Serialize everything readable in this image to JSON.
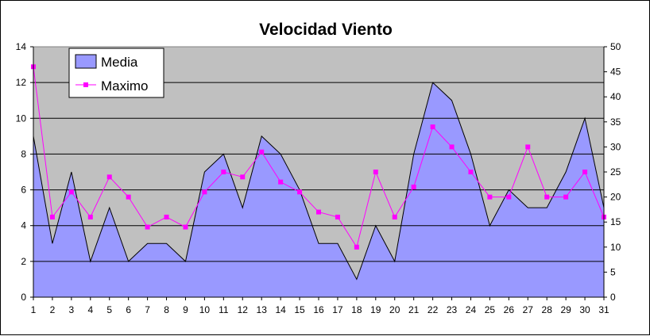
{
  "chart_data": {
    "type": "area+line",
    "title": "Velocidad Viento",
    "xlabel": "",
    "ylabel": "",
    "x": [
      1,
      2,
      3,
      4,
      5,
      6,
      7,
      8,
      9,
      10,
      11,
      12,
      13,
      14,
      15,
      16,
      17,
      18,
      19,
      20,
      21,
      22,
      23,
      24,
      25,
      26,
      27,
      28,
      29,
      30,
      31
    ],
    "y_left_lim": [
      0,
      14
    ],
    "y_left_ticks": [
      0,
      2,
      4,
      6,
      8,
      10,
      12,
      14
    ],
    "y_right_lim": [
      0,
      50
    ],
    "y_right_ticks": [
      0,
      5,
      10,
      15,
      20,
      25,
      30,
      35,
      40,
      45,
      50
    ],
    "grid": true,
    "legend_position": "top-left",
    "series": [
      {
        "name": "Media",
        "kind": "area",
        "axis": "left",
        "color": "#9999ff",
        "values": [
          9,
          3,
          7,
          2,
          5,
          2,
          3,
          3,
          2,
          7,
          8,
          5,
          9,
          8,
          6,
          3,
          3,
          1,
          4,
          2,
          8,
          12,
          11,
          8,
          4,
          6,
          5,
          5,
          7,
          10,
          5
        ]
      },
      {
        "name": "Maximo",
        "kind": "line",
        "axis": "right",
        "color": "#ff00ff",
        "values": [
          46,
          16,
          21,
          16,
          24,
          20,
          14,
          16,
          14,
          21,
          25,
          24,
          29,
          23,
          21,
          17,
          16,
          10,
          25,
          16,
          22,
          34,
          30,
          25,
          20,
          20,
          30,
          20,
          20,
          25,
          16
        ]
      }
    ]
  },
  "colors": {
    "plot_background": "#c0c0c0",
    "gridline": "#000000"
  }
}
